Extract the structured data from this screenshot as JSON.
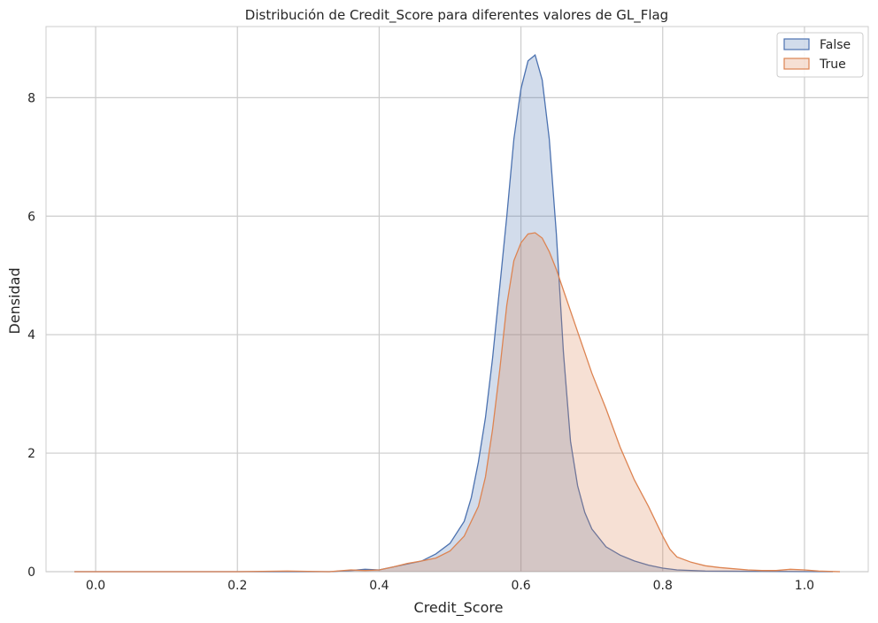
{
  "chart_data": {
    "type": "area",
    "title": "Distribución de Credit_Score para diferentes valores de GL_Flag",
    "xlabel": "Credit_Score",
    "ylabel": "Densidad",
    "xlim": [
      -0.07,
      1.09
    ],
    "ylim": [
      0,
      9.2
    ],
    "xticks": [
      "0.0",
      "0.2",
      "0.4",
      "0.6",
      "0.8",
      "1.0"
    ],
    "yticks": [
      "0",
      "2",
      "4",
      "6",
      "8"
    ],
    "grid": true,
    "legend_placement": "top-right",
    "series": [
      {
        "name": "False",
        "color": "#4c72b0",
        "points": [
          [
            -0.03,
            0
          ],
          [
            0.2,
            0.0
          ],
          [
            0.33,
            0.0
          ],
          [
            0.36,
            0.02
          ],
          [
            0.38,
            0.04
          ],
          [
            0.4,
            0.03
          ],
          [
            0.42,
            0.08
          ],
          [
            0.44,
            0.13
          ],
          [
            0.46,
            0.18
          ],
          [
            0.48,
            0.3
          ],
          [
            0.5,
            0.48
          ],
          [
            0.52,
            0.85
          ],
          [
            0.53,
            1.25
          ],
          [
            0.54,
            1.85
          ],
          [
            0.55,
            2.6
          ],
          [
            0.56,
            3.6
          ],
          [
            0.57,
            4.8
          ],
          [
            0.58,
            6.0
          ],
          [
            0.59,
            7.3
          ],
          [
            0.6,
            8.15
          ],
          [
            0.61,
            8.62
          ],
          [
            0.62,
            8.72
          ],
          [
            0.63,
            8.3
          ],
          [
            0.64,
            7.3
          ],
          [
            0.65,
            5.7
          ],
          [
            0.66,
            3.7
          ],
          [
            0.67,
            2.2
          ],
          [
            0.68,
            1.45
          ],
          [
            0.69,
            1.0
          ],
          [
            0.7,
            0.72
          ],
          [
            0.72,
            0.42
          ],
          [
            0.74,
            0.28
          ],
          [
            0.76,
            0.18
          ],
          [
            0.78,
            0.11
          ],
          [
            0.8,
            0.06
          ],
          [
            0.82,
            0.03
          ],
          [
            0.86,
            0.01
          ],
          [
            1.04,
            0
          ]
        ]
      },
      {
        "name": "True",
        "color": "#dd8452",
        "points": [
          [
            -0.03,
            0
          ],
          [
            0.2,
            0.0
          ],
          [
            0.27,
            0.01
          ],
          [
            0.33,
            0.0
          ],
          [
            0.36,
            0.03
          ],
          [
            0.38,
            0.02
          ],
          [
            0.4,
            0.03
          ],
          [
            0.42,
            0.08
          ],
          [
            0.44,
            0.14
          ],
          [
            0.46,
            0.18
          ],
          [
            0.48,
            0.23
          ],
          [
            0.5,
            0.35
          ],
          [
            0.52,
            0.6
          ],
          [
            0.54,
            1.1
          ],
          [
            0.55,
            1.6
          ],
          [
            0.56,
            2.4
          ],
          [
            0.57,
            3.4
          ],
          [
            0.58,
            4.5
          ],
          [
            0.59,
            5.25
          ],
          [
            0.6,
            5.55
          ],
          [
            0.61,
            5.7
          ],
          [
            0.62,
            5.72
          ],
          [
            0.63,
            5.63
          ],
          [
            0.64,
            5.4
          ],
          [
            0.65,
            5.1
          ],
          [
            0.66,
            4.75
          ],
          [
            0.67,
            4.4
          ],
          [
            0.68,
            4.05
          ],
          [
            0.69,
            3.7
          ],
          [
            0.7,
            3.35
          ],
          [
            0.72,
            2.75
          ],
          [
            0.74,
            2.1
          ],
          [
            0.76,
            1.55
          ],
          [
            0.78,
            1.1
          ],
          [
            0.8,
            0.6
          ],
          [
            0.81,
            0.38
          ],
          [
            0.82,
            0.25
          ],
          [
            0.84,
            0.16
          ],
          [
            0.86,
            0.1
          ],
          [
            0.88,
            0.07
          ],
          [
            0.9,
            0.05
          ],
          [
            0.92,
            0.03
          ],
          [
            0.94,
            0.02
          ],
          [
            0.96,
            0.02
          ],
          [
            0.98,
            0.04
          ],
          [
            1.0,
            0.03
          ],
          [
            1.02,
            0.01
          ],
          [
            1.05,
            0
          ]
        ]
      }
    ]
  }
}
